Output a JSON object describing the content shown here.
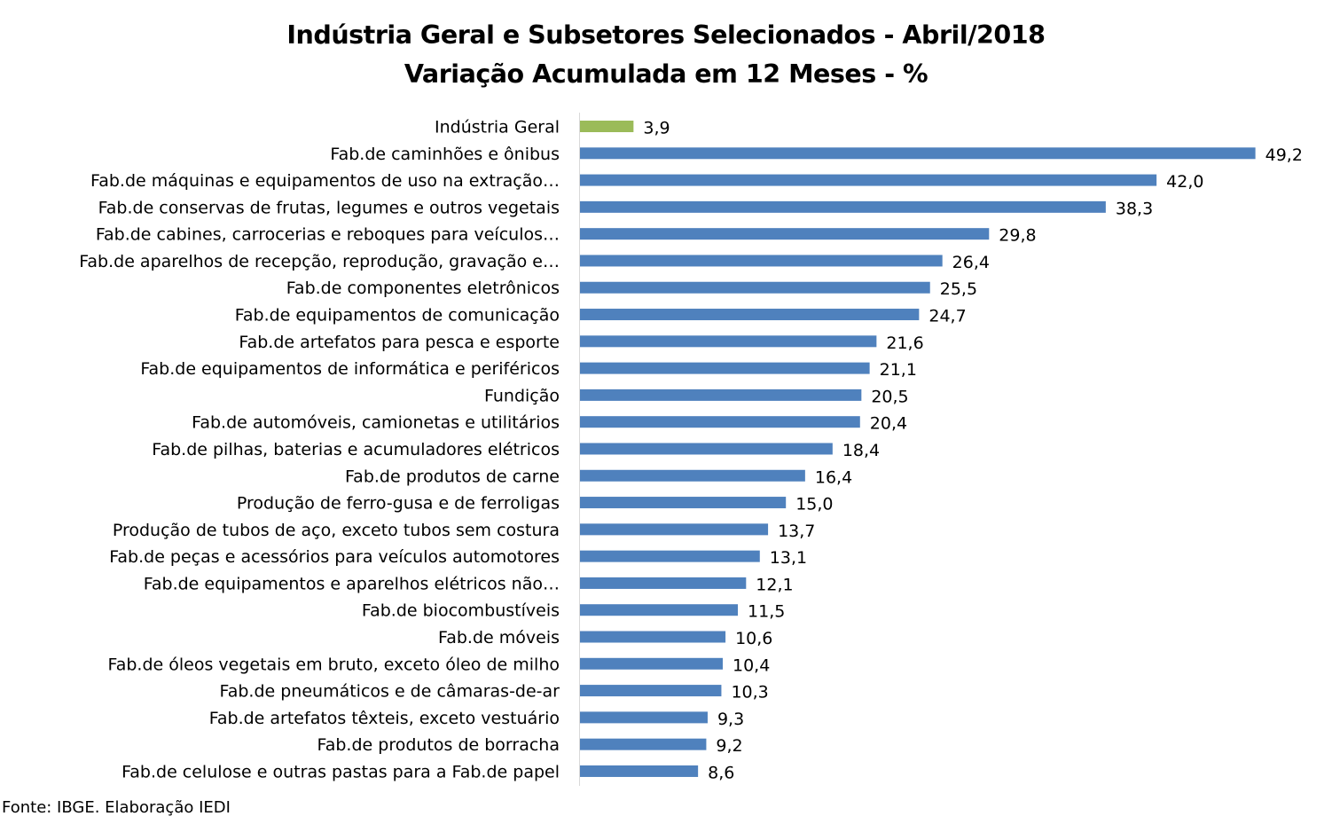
{
  "chart_data": {
    "type": "bar",
    "orientation": "horizontal",
    "title": "Indústria Geral e Subsetores Selecionados - Abril/2018",
    "subtitle": "Variação Acumulada em 12 Meses - %",
    "xlabel": "",
    "ylabel": "",
    "xlim": [
      0,
      50
    ],
    "grid": false,
    "legend": "none",
    "highlight_color": "#9BBB59",
    "bar_color": "#4F81BD",
    "categories": [
      "Indústria Geral",
      "Fab.de caminhões e ônibus",
      "Fab.de máquinas e equipamentos de uso na extração…",
      "Fab.de conservas de frutas, legumes e outros vegetais",
      "Fab.de cabines, carrocerias e reboques para veículos…",
      "Fab.de aparelhos de recepção, reprodução, gravação e…",
      "Fab.de componentes eletrônicos",
      "Fab.de equipamentos de comunicação",
      "Fab.de artefatos para pesca e esporte",
      "Fab.de equipamentos de informática e periféricos",
      "Fundição",
      "Fab.de automóveis, camionetas e utilitários",
      "Fab.de pilhas, baterias e acumuladores elétricos",
      "Fab.de produtos de carne",
      "Produção de ferro-gusa e de ferroligas",
      "Produção de tubos de aço, exceto tubos sem costura",
      "Fab.de peças e acessórios para veículos automotores",
      "Fab.de equipamentos e aparelhos elétricos não…",
      "Fab.de biocombustíveis",
      "Fab.de móveis",
      "Fab.de óleos vegetais em bruto, exceto óleo de milho",
      "Fab.de pneumáticos e de câmaras-de-ar",
      "Fab.de artefatos têxteis, exceto vestuário",
      "Fab.de produtos de borracha",
      "Fab.de celulose e outras pastas para a Fab.de papel"
    ],
    "values": [
      3.9,
      49.2,
      42.0,
      38.3,
      29.8,
      26.4,
      25.5,
      24.7,
      21.6,
      21.1,
      20.5,
      20.4,
      18.4,
      16.4,
      15.0,
      13.7,
      13.1,
      12.1,
      11.5,
      10.6,
      10.4,
      10.3,
      9.3,
      9.2,
      8.6
    ],
    "value_labels": [
      "3,9",
      "49,2",
      "42,0",
      "38,3",
      "29,8",
      "26,4",
      "25,5",
      "24,7",
      "21,6",
      "21,1",
      "20,5",
      "20,4",
      "18,4",
      "16,4",
      "15,0",
      "13,7",
      "13,1",
      "12,1",
      "11,5",
      "10,6",
      "10,4",
      "10,3",
      "9,3",
      "9,2",
      "8,6"
    ],
    "highlight_index": 0
  },
  "footer": {
    "source": "Fonte: IBGE. Elaboração IEDI"
  }
}
